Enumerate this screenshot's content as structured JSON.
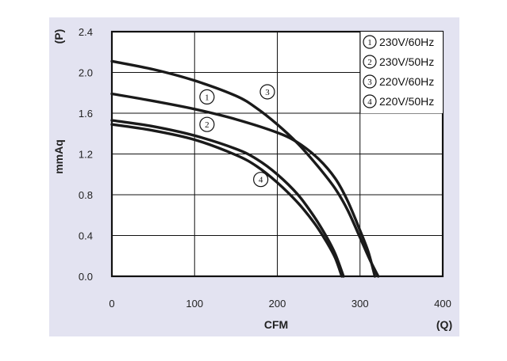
{
  "chart_data": {
    "type": "line",
    "xlabel": "CFM",
    "x_unit": "(Q)",
    "ylabel": "mmAq",
    "y_unit": "(P)",
    "xlim": [
      0,
      400
    ],
    "ylim": [
      0,
      2.4
    ],
    "xticks": [
      "0",
      "100",
      "200",
      "300",
      "400"
    ],
    "yticks": [
      "0.0",
      "0.4",
      "0.8",
      "1.2",
      "1.6",
      "2.0",
      "2.4"
    ],
    "grid": true,
    "legend_position": "top-right",
    "series": [
      {
        "name": "230V/60Hz",
        "marker": "1",
        "points": [
          [
            0,
            1.79
          ],
          [
            50,
            1.72
          ],
          [
            100,
            1.64
          ],
          [
            150,
            1.54
          ],
          [
            200,
            1.41
          ],
          [
            225,
            1.31
          ],
          [
            250,
            1.15
          ],
          [
            270,
            0.96
          ],
          [
            285,
            0.74
          ],
          [
            300,
            0.45
          ],
          [
            310,
            0.24
          ],
          [
            318,
            0.0
          ]
        ]
      },
      {
        "name": "230V/50Hz",
        "marker": "2",
        "points": [
          [
            0,
            1.53
          ],
          [
            50,
            1.47
          ],
          [
            100,
            1.38
          ],
          [
            150,
            1.25
          ],
          [
            175,
            1.15
          ],
          [
            200,
            1.0
          ],
          [
            225,
            0.8
          ],
          [
            245,
            0.58
          ],
          [
            260,
            0.38
          ],
          [
            270,
            0.22
          ],
          [
            280,
            0.0
          ]
        ]
      },
      {
        "name": "220V/60Hz",
        "marker": "3",
        "points": [
          [
            0,
            2.11
          ],
          [
            50,
            2.03
          ],
          [
            100,
            1.92
          ],
          [
            150,
            1.77
          ],
          [
            175,
            1.65
          ],
          [
            200,
            1.49
          ],
          [
            225,
            1.3
          ],
          [
            250,
            1.07
          ],
          [
            270,
            0.86
          ],
          [
            285,
            0.65
          ],
          [
            300,
            0.38
          ],
          [
            312,
            0.16
          ],
          [
            322,
            0.0
          ]
        ]
      },
      {
        "name": "220V/50Hz",
        "marker": "4",
        "points": [
          [
            0,
            1.49
          ],
          [
            50,
            1.43
          ],
          [
            100,
            1.34
          ],
          [
            150,
            1.19
          ],
          [
            175,
            1.08
          ],
          [
            200,
            0.92
          ],
          [
            225,
            0.72
          ],
          [
            245,
            0.52
          ],
          [
            260,
            0.33
          ],
          [
            270,
            0.18
          ],
          [
            278,
            0.0
          ]
        ]
      }
    ],
    "curve_markers": [
      {
        "label": "1",
        "x": 115,
        "y": 1.76
      },
      {
        "label": "2",
        "x": 115,
        "y": 1.49
      },
      {
        "label": "3",
        "x": 188,
        "y": 1.81
      },
      {
        "label": "4",
        "x": 180,
        "y": 0.95
      }
    ],
    "legend_circle_color": "#111111",
    "line_color": "#1a1a1a",
    "panel_color": "#e3e3f1"
  }
}
